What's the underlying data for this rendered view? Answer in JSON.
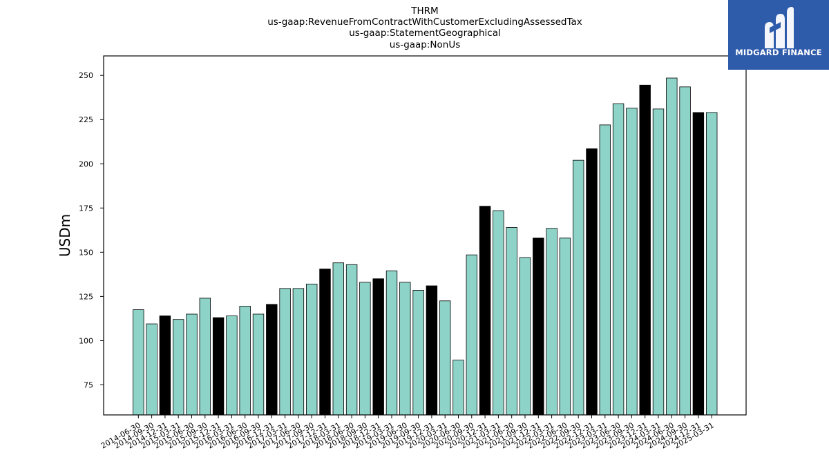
{
  "title_lines": [
    "THRM",
    "us-gaap:RevenueFromContractWithCustomerExcludingAssessedTax",
    "us-gaap:StatementGeographical",
    "us-gaap:NonUs"
  ],
  "logo": {
    "text": "MIDGARD FINANCE",
    "background": "#2f5bab"
  },
  "chart_data": {
    "type": "bar",
    "ylabel": "USDm",
    "xlabel": "",
    "ylim": [
      58,
      261
    ],
    "yticks": [
      75,
      100,
      125,
      150,
      175,
      200,
      225,
      250
    ],
    "colors": {
      "normal": "#8dd3c7",
      "highlight": "#000000",
      "edge": "#000000"
    },
    "categories": [
      "2014-06-30",
      "2014-09-30",
      "2014-12-31",
      "2015-03-31",
      "2015-06-30",
      "2015-09-30",
      "2015-12-31",
      "2016-03-31",
      "2016-06-30",
      "2016-09-30",
      "2016-12-31",
      "2017-03-31",
      "2017-06-30",
      "2017-09-30",
      "2017-12-31",
      "2018-03-31",
      "2018-06-30",
      "2018-09-30",
      "2018-12-31",
      "2019-03-31",
      "2019-06-30",
      "2019-09-30",
      "2019-12-31",
      "2020-03-31",
      "2020-06-30",
      "2020-09-30",
      "2020-12-31",
      "2021-03-31",
      "2021-06-30",
      "2021-09-30",
      "2021-12-31",
      "2022-03-31",
      "2022-06-30",
      "2022-09-30",
      "2022-12-31",
      "2023-03-31",
      "2023-06-30",
      "2023-09-30",
      "2023-12-31",
      "2024-03-31",
      "2024-06-30",
      "2024-09-30",
      "2024-12-31",
      "2025-03-31"
    ],
    "values": [
      117.5,
      109.5,
      114,
      112,
      115,
      124,
      113,
      114,
      119.5,
      115,
      120.5,
      129.5,
      129.5,
      132,
      140.5,
      144,
      143,
      133,
      135,
      139.5,
      133,
      128.5,
      131,
      122.5,
      89,
      148.5,
      176,
      173.5,
      164,
      147,
      158,
      163.5,
      158,
      202,
      208.5,
      222,
      234,
      231.5,
      244.5,
      231,
      248.5,
      243.5,
      229,
      229
    ],
    "highlight": [
      false,
      false,
      true,
      false,
      false,
      false,
      true,
      false,
      false,
      false,
      true,
      false,
      false,
      false,
      true,
      false,
      false,
      false,
      true,
      false,
      false,
      false,
      true,
      false,
      false,
      false,
      true,
      false,
      false,
      false,
      true,
      false,
      false,
      false,
      true,
      false,
      false,
      false,
      true,
      false,
      false,
      false,
      true,
      false
    ]
  }
}
